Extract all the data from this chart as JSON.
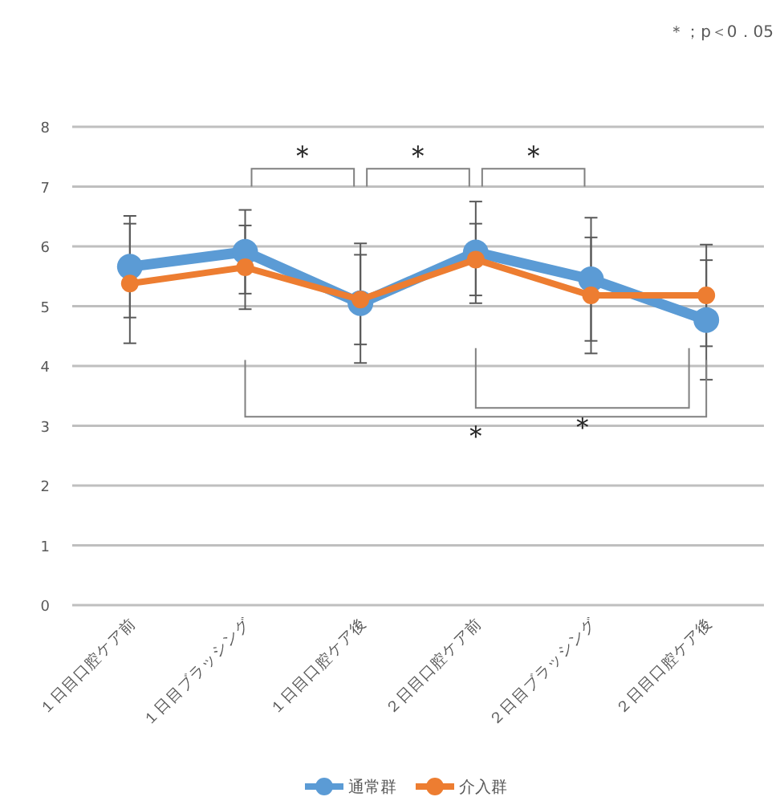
{
  "chart_data": {
    "type": "line",
    "categories": [
      "１日目口腔ケア前",
      "１日目ブラッシング",
      "１日目口腔ケア後",
      "２日目口腔ケア前",
      "２日目ブラッシング",
      "２日目口腔ケア後"
    ],
    "series": [
      {
        "name": "通常群",
        "color": "#5b9bd5",
        "values": [
          5.66,
          5.91,
          5.05,
          5.9,
          5.45,
          4.77
        ],
        "errors": [
          0.85,
          0.7,
          1.0,
          0.85,
          1.03,
          1.0
        ]
      },
      {
        "name": "介入群",
        "color": "#ed7d31",
        "values": [
          5.38,
          5.65,
          5.11,
          5.78,
          5.18,
          5.18
        ],
        "errors": [
          1.0,
          0.7,
          0.75,
          0.6,
          0.97,
          0.85
        ]
      }
    ],
    "ylim": [
      0,
      8
    ],
    "yticks": [
      0,
      1,
      2,
      3,
      4,
      5,
      6,
      7,
      8
    ],
    "grid": "y",
    "legend": "bottom",
    "marker": "circle",
    "line_style": "solid",
    "annotations": [
      "＊；p＜0．05",
      "＊",
      "＊",
      "＊",
      "＊",
      "＊"
    ]
  }
}
